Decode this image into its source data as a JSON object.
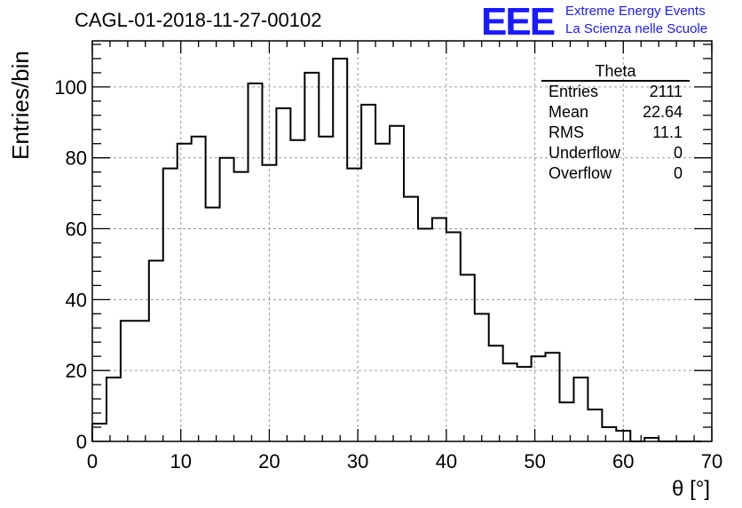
{
  "header": {
    "title": "CAGL-01-2018-11-27-00102",
    "logo_mark": "EEE",
    "logo_line1": "Extreme Energy Events",
    "logo_line2": "La Scienza nelle Scuole"
  },
  "stats_box": {
    "name": "Theta",
    "rows": [
      {
        "label": "Entries",
        "value": "2111"
      },
      {
        "label": "Mean",
        "value": "22.64"
      },
      {
        "label": "RMS",
        "value": "11.1"
      },
      {
        "label": "Underflow",
        "value": "0"
      },
      {
        "label": "Overflow",
        "value": "0"
      }
    ]
  },
  "chart_data": {
    "type": "bar",
    "title": "CAGL-01-2018-11-27-00102",
    "xlabel": "θ [°]",
    "ylabel": "Entries/bin",
    "xlim": [
      0,
      70
    ],
    "ylim": [
      0,
      113
    ],
    "grid": true,
    "bin_width": 1.6,
    "x_ticks": [
      0,
      10,
      20,
      30,
      40,
      50,
      60,
      70
    ],
    "y_ticks": [
      0,
      20,
      40,
      60,
      80,
      100
    ],
    "bin_edges_start": 0,
    "values": [
      5,
      18,
      34,
      34,
      51,
      77,
      84,
      86,
      66,
      80,
      76,
      101,
      78,
      94,
      85,
      104,
      86,
      108,
      77,
      95,
      84,
      89,
      69,
      60,
      63,
      59,
      47,
      36,
      27,
      22,
      21,
      24,
      25,
      11,
      18,
      9,
      4,
      3,
      0,
      1,
      0,
      0,
      0,
      0
    ]
  },
  "colors": {
    "line": "#000000",
    "grid": "#9a9a9a",
    "logo": "#1a1aff"
  }
}
